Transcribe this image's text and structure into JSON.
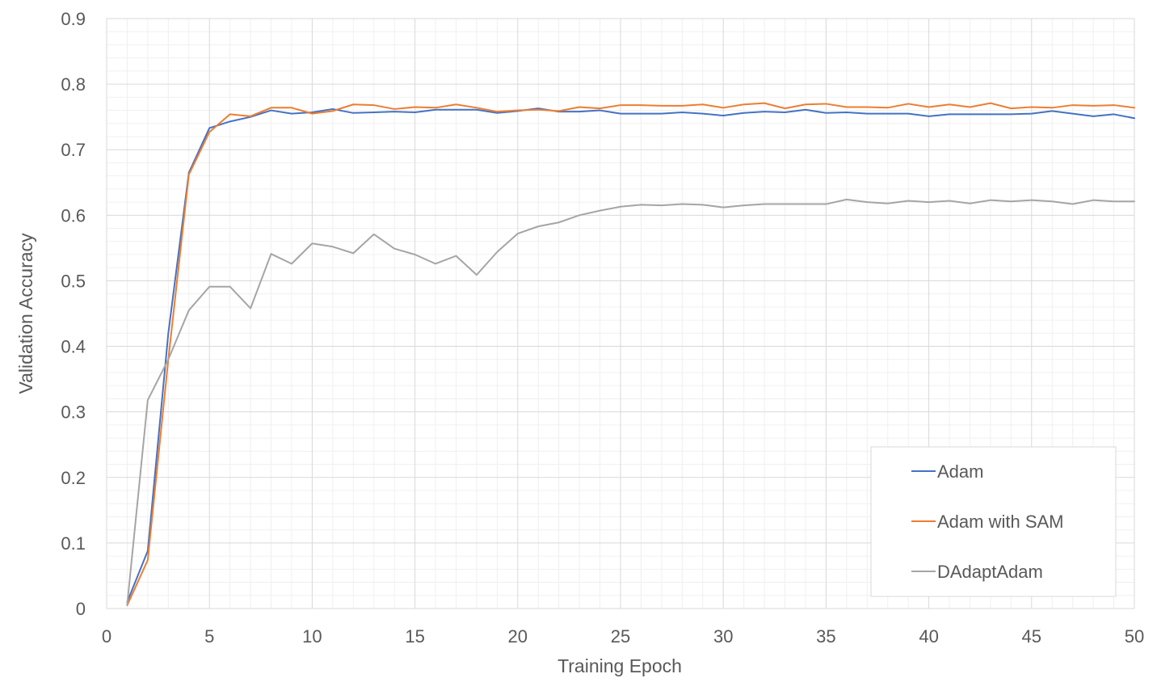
{
  "chart_data": {
    "type": "line",
    "title": "",
    "xlabel": "Training Epoch",
    "ylabel": "Validation Accuracy",
    "xlim": [
      0,
      50
    ],
    "ylim": [
      0,
      0.9
    ],
    "x_ticks": [
      0,
      5,
      10,
      15,
      20,
      25,
      30,
      35,
      40,
      45,
      50
    ],
    "y_ticks": [
      0,
      0.1,
      0.2,
      0.3,
      0.4,
      0.5,
      0.6,
      0.7,
      0.8,
      0.9
    ],
    "y_tick_labels": [
      "0",
      "0.1",
      "0.2",
      "0.3",
      "0.4",
      "0.5",
      "0.6",
      "0.7",
      "0.8",
      "0.9"
    ],
    "grid": true,
    "legend_position": "bottom-right",
    "x": [
      1,
      2,
      3,
      4,
      5,
      6,
      7,
      8,
      9,
      10,
      11,
      12,
      13,
      14,
      15,
      16,
      17,
      18,
      19,
      20,
      21,
      22,
      23,
      24,
      25,
      26,
      27,
      28,
      29,
      30,
      31,
      32,
      33,
      34,
      35,
      36,
      37,
      38,
      39,
      40,
      41,
      42,
      43,
      44,
      45,
      46,
      47,
      48,
      49,
      50
    ],
    "series": [
      {
        "name": "Adam",
        "color": "#4472C4",
        "values": [
          0.01,
          0.088,
          0.42,
          0.665,
          0.733,
          0.743,
          0.75,
          0.76,
          0.755,
          0.757,
          0.762,
          0.756,
          0.757,
          0.758,
          0.757,
          0.761,
          0.761,
          0.761,
          0.756,
          0.759,
          0.763,
          0.758,
          0.758,
          0.76,
          0.755,
          0.755,
          0.755,
          0.757,
          0.755,
          0.752,
          0.756,
          0.758,
          0.757,
          0.761,
          0.756,
          0.757,
          0.755,
          0.755,
          0.755,
          0.751,
          0.754,
          0.754,
          0.754,
          0.754,
          0.755,
          0.759,
          0.755,
          0.751,
          0.754,
          0.748
        ]
      },
      {
        "name": "Adam with SAM",
        "color": "#ED7D31",
        "values": [
          0.005,
          0.074,
          0.38,
          0.662,
          0.727,
          0.754,
          0.751,
          0.764,
          0.764,
          0.755,
          0.759,
          0.769,
          0.768,
          0.762,
          0.765,
          0.764,
          0.769,
          0.764,
          0.758,
          0.76,
          0.761,
          0.759,
          0.765,
          0.763,
          0.768,
          0.768,
          0.767,
          0.767,
          0.769,
          0.764,
          0.769,
          0.771,
          0.763,
          0.769,
          0.77,
          0.765,
          0.765,
          0.764,
          0.77,
          0.765,
          0.769,
          0.765,
          0.771,
          0.763,
          0.765,
          0.764,
          0.768,
          0.767,
          0.768,
          0.764
        ]
      },
      {
        "name": "DAdaptAdam",
        "color": "#A5A5A5",
        "values": [
          0.006,
          0.318,
          0.38,
          0.455,
          0.491,
          0.491,
          0.458,
          0.541,
          0.526,
          0.557,
          0.552,
          0.542,
          0.571,
          0.549,
          0.54,
          0.526,
          0.538,
          0.509,
          0.544,
          0.572,
          0.583,
          0.589,
          0.6,
          0.607,
          0.613,
          0.616,
          0.615,
          0.617,
          0.616,
          0.612,
          0.615,
          0.617,
          0.617,
          0.617,
          0.617,
          0.624,
          0.62,
          0.618,
          0.622,
          0.62,
          0.622,
          0.618,
          0.623,
          0.621,
          0.623,
          0.621,
          0.617,
          0.623,
          0.621,
          0.621
        ]
      }
    ]
  }
}
